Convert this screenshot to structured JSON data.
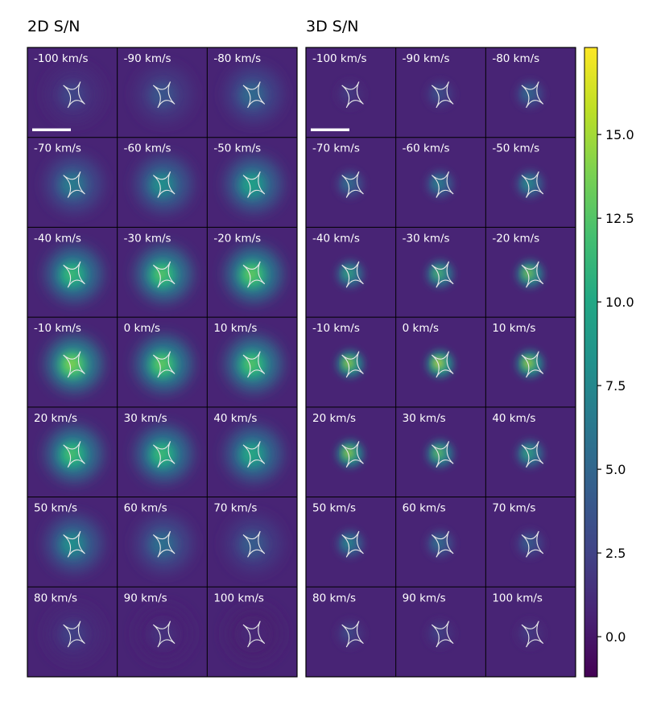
{
  "chart_data": {
    "type": "heatmap",
    "colormap": "viridis",
    "panels": [
      {
        "title": "2D S/N",
        "velocity_labels": [
          "-100 km/s",
          "-90 km/s",
          "-80 km/s",
          "-70 km/s",
          "-60 km/s",
          "-50 km/s",
          "-40 km/s",
          "-30 km/s",
          "-20 km/s",
          "-10 km/s",
          "0 km/s",
          "10 km/s",
          "20 km/s",
          "30 km/s",
          "40 km/s",
          "50 km/s",
          "60 km/s",
          "70 km/s",
          "80 km/s",
          "90 km/s",
          "100 km/s"
        ],
        "peak_sn": [
          3.0,
          4.0,
          5.5,
          7.0,
          8.5,
          10.0,
          12.0,
          13.0,
          13.5,
          14.5,
          13.5,
          13.0,
          12.5,
          12.0,
          10.5,
          8.5,
          6.0,
          4.5,
          2.5,
          1.5,
          1.0
        ],
        "blob_spread": 1.9
      },
      {
        "title": "3D S/N",
        "velocity_labels": [
          "-100 km/s",
          "-90 km/s",
          "-80 km/s",
          "-70 km/s",
          "-60 km/s",
          "-50 km/s",
          "-40 km/s",
          "-30 km/s",
          "-20 km/s",
          "-10 km/s",
          "0 km/s",
          "10 km/s",
          "20 km/s",
          "30 km/s",
          "40 km/s",
          "50 km/s",
          "60 km/s",
          "70 km/s",
          "80 km/s",
          "90 km/s",
          "100 km/s"
        ],
        "peak_sn": [
          2.5,
          4.0,
          6.0,
          6.5,
          8.0,
          9.0,
          11.0,
          12.5,
          14.5,
          15.5,
          17.0,
          16.0,
          15.5,
          13.5,
          11.0,
          8.5,
          6.5,
          5.0,
          3.5,
          3.0,
          2.5
        ],
        "blob_spread": 1.0
      }
    ],
    "colorbar": {
      "vmin": -1.2,
      "vmax": 17.6,
      "ticks": [
        0.0,
        2.5,
        5.0,
        7.5,
        10.0,
        12.5,
        15.0
      ],
      "tick_labels": [
        "0.0",
        "2.5",
        "5.0",
        "7.5",
        "10.0",
        "12.5",
        "15.0"
      ]
    },
    "overlay": "caustic curve (white)",
    "scale_bar": "white bar in first cell of each panel"
  }
}
